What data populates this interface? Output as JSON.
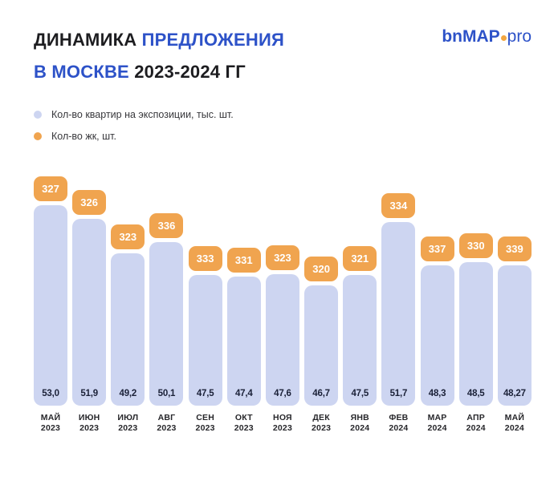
{
  "header": {
    "title_line1_dark": "ДИНАМИКА",
    "title_line1_blue": "ПРЕДЛОЖЕНИЯ",
    "title_line2_blue": "В МОСКВЕ",
    "title_line2_dark": "2023-2024 ГГ"
  },
  "logo": {
    "part_bn": "bn",
    "part_map": "MAP",
    "part_pro": "pro",
    "dot_color": "#f2a640"
  },
  "legend": [
    {
      "label": "Кол-во квартир на экспозиции, тыс. шт.",
      "color": "#cdd5f1"
    },
    {
      "label": "Кол-во жк, шт.",
      "color": "#f0a44f"
    }
  ],
  "colors": {
    "bar": "#cdd5f1",
    "badge": "#f0a44f",
    "title_blue": "#2d52c8",
    "title_dark": "#1d1d20"
  },
  "chart_data": {
    "type": "bar",
    "title": "ДИНАМИКА ПРЕДЛОЖЕНИЯ В МОСКВЕ 2023-2024 ГГ",
    "categories": [
      [
        "МАЙ",
        "2023"
      ],
      [
        "ИЮН",
        "2023"
      ],
      [
        "ИЮЛ",
        "2023"
      ],
      [
        "АВГ",
        "2023"
      ],
      [
        "СЕН",
        "2023"
      ],
      [
        "ОКТ",
        "2023"
      ],
      [
        "НОЯ",
        "2023"
      ],
      [
        "ДЕК",
        "2023"
      ],
      [
        "ЯНВ",
        "2024"
      ],
      [
        "ФЕВ",
        "2024"
      ],
      [
        "МАР",
        "2024"
      ],
      [
        "АПР",
        "2024"
      ],
      [
        "МАЙ",
        "2024"
      ]
    ],
    "series": [
      {
        "name": "Кол-во квартир на экспозиции, тыс. шт.",
        "values": [
          53.0,
          51.9,
          49.2,
          50.1,
          47.5,
          47.4,
          47.6,
          46.7,
          47.5,
          51.7,
          48.3,
          48.5,
          48.27
        ],
        "labels": [
          "53,0",
          "51,9",
          "49,2",
          "50,1",
          "47,5",
          "47,4",
          "47,6",
          "46,7",
          "47,5",
          "51,7",
          "48,3",
          "48,5",
          "48,27"
        ],
        "color": "#cdd5f1"
      },
      {
        "name": "Кол-во жк, шт.",
        "values": [
          327,
          326,
          323,
          336,
          333,
          331,
          323,
          320,
          321,
          334,
          337,
          330,
          339
        ],
        "color": "#f0a44f"
      }
    ],
    "value_range": [
      46.7,
      53.0
    ],
    "grid": false,
    "axes_visible": false,
    "legend_position": "top-left"
  }
}
